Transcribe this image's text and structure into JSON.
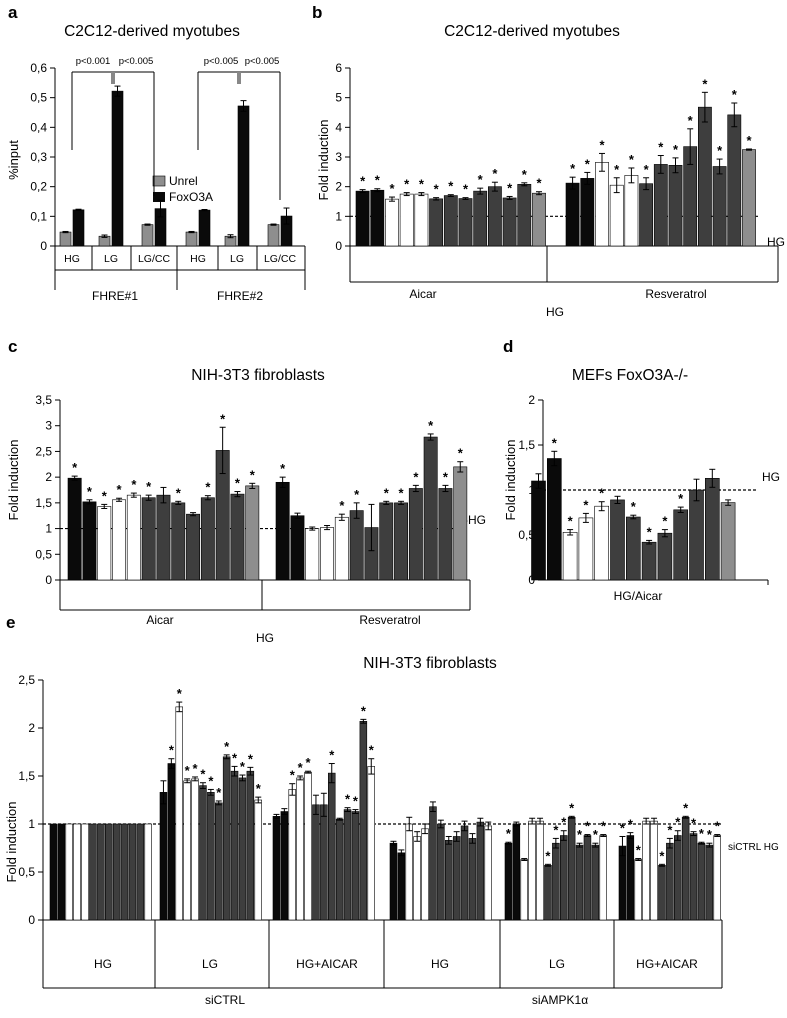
{
  "colors": {
    "black": "#0a0a0a",
    "white": "#ffffff",
    "dark": "#3e3e3e",
    "gray": "#8e8e8e"
  },
  "chart_data": [
    {
      "id": "a",
      "panel": "a",
      "type": "bar",
      "title": "C2C12-derived myotubes",
      "ylabel": "%input",
      "ylim": [
        0,
        0.6
      ],
      "yticks": [
        "0",
        "0,1",
        "0,2",
        "0,3",
        "0,4",
        "0,5",
        "0,6"
      ],
      "groups": [
        "FHRE#1",
        "FHRE#2"
      ],
      "categories": [
        "HG",
        "LG",
        "LG/CC",
        "HG",
        "LG",
        "LG/CC"
      ],
      "series": [
        {
          "name": "Unrel",
          "color": "#8e8e8e",
          "values": [
            0.047,
            0.033,
            0.072,
            0.047,
            0.033,
            0.072
          ],
          "errors": [
            0.002,
            0.004,
            0.002,
            0.002,
            0.005,
            0.002
          ]
        },
        {
          "name": "FoxO3A",
          "color": "#0a0a0a",
          "values": [
            0.122,
            0.522,
            0.126,
            0.121,
            0.472,
            0.101
          ],
          "errors": [
            0.002,
            0.017,
            0.028,
            0.002,
            0.018,
            0.027
          ]
        }
      ],
      "pvalues": [
        "p<0.001",
        "p<0.005",
        "p<0.005",
        "p<0.005"
      ]
    },
    {
      "id": "b",
      "panel": "b",
      "type": "bar",
      "title": "C2C12-derived myotubes",
      "ylabel": "Fold induction",
      "ylim": [
        0,
        6
      ],
      "yticks": [
        "0",
        "1",
        "2",
        "3",
        "4",
        "5",
        "6"
      ],
      "baseline_label": "HG",
      "center_label": "HG",
      "groups": [
        "Aicar",
        "Resveratrol"
      ],
      "bars": [
        {
          "v": 1.85,
          "e": 0.05,
          "c": "black",
          "s": true
        },
        {
          "v": 1.88,
          "e": 0.05,
          "c": "black",
          "s": true
        },
        {
          "v": 1.58,
          "e": 0.07,
          "c": "white",
          "s": true
        },
        {
          "v": 1.75,
          "e": 0.05,
          "c": "white",
          "s": true
        },
        {
          "v": 1.75,
          "e": 0.05,
          "c": "white",
          "s": true
        },
        {
          "v": 1.59,
          "e": 0.04,
          "c": "dark",
          "s": true
        },
        {
          "v": 1.7,
          "e": 0.03,
          "c": "dark",
          "s": true
        },
        {
          "v": 1.6,
          "e": 0.03,
          "c": "dark",
          "s": true
        },
        {
          "v": 1.85,
          "e": 0.1,
          "c": "dark",
          "s": true
        },
        {
          "v": 2.0,
          "e": 0.15,
          "c": "dark",
          "s": true
        },
        {
          "v": 1.62,
          "e": 0.05,
          "c": "dark",
          "s": true
        },
        {
          "v": 2.08,
          "e": 0.05,
          "c": "dark",
          "s": true
        },
        {
          "v": 1.78,
          "e": 0.05,
          "c": "gray",
          "s": true
        },
        {
          "v": 2.12,
          "e": 0.2,
          "c": "black",
          "s": true
        },
        {
          "v": 2.28,
          "e": 0.2,
          "c": "black",
          "s": true
        },
        {
          "v": 2.82,
          "e": 0.3,
          "c": "white",
          "s": true
        },
        {
          "v": 2.05,
          "e": 0.25,
          "c": "white",
          "s": true
        },
        {
          "v": 2.38,
          "e": 0.25,
          "c": "white",
          "s": true
        },
        {
          "v": 2.1,
          "e": 0.2,
          "c": "dark",
          "s": true
        },
        {
          "v": 2.75,
          "e": 0.3,
          "c": "dark",
          "s": true
        },
        {
          "v": 2.72,
          "e": 0.25,
          "c": "dark",
          "s": true
        },
        {
          "v": 3.35,
          "e": 0.6,
          "c": "dark",
          "s": true
        },
        {
          "v": 4.68,
          "e": 0.5,
          "c": "dark",
          "s": true
        },
        {
          "v": 2.68,
          "e": 0.25,
          "c": "dark",
          "s": true
        },
        {
          "v": 4.42,
          "e": 0.4,
          "c": "dark",
          "s": true
        },
        {
          "v": 3.25,
          "e": 0.02,
          "c": "gray",
          "s": true
        }
      ]
    },
    {
      "id": "c",
      "panel": "c",
      "type": "bar",
      "title": "NIH-3T3 fibroblasts",
      "ylabel": "Fold induction",
      "ylim": [
        0,
        3.5
      ],
      "yticks": [
        "0",
        "0,5",
        "1",
        "1,5",
        "2",
        "2,5",
        "3",
        "3,5"
      ],
      "baseline_label": "-HG",
      "center_label": "HG",
      "groups": [
        "Aicar",
        "Resveratrol"
      ],
      "bars": [
        {
          "v": 1.98,
          "e": 0.04,
          "c": "black",
          "s": true
        },
        {
          "v": 1.52,
          "e": 0.04,
          "c": "black",
          "s": true
        },
        {
          "v": 1.43,
          "e": 0.04,
          "c": "white",
          "s": true
        },
        {
          "v": 1.56,
          "e": 0.03,
          "c": "white",
          "s": true
        },
        {
          "v": 1.65,
          "e": 0.04,
          "c": "white",
          "s": true
        },
        {
          "v": 1.6,
          "e": 0.05,
          "c": "dark",
          "s": true
        },
        {
          "v": 1.65,
          "e": 0.15,
          "c": "dark",
          "s": false
        },
        {
          "v": 1.5,
          "e": 0.03,
          "c": "dark",
          "s": true
        },
        {
          "v": 1.28,
          "e": 0.03,
          "c": "dark",
          "s": false
        },
        {
          "v": 1.6,
          "e": 0.04,
          "c": "dark",
          "s": true
        },
        {
          "v": 2.52,
          "e": 0.45,
          "c": "dark",
          "s": true
        },
        {
          "v": 1.67,
          "e": 0.05,
          "c": "dark",
          "s": true
        },
        {
          "v": 1.83,
          "e": 0.05,
          "c": "gray",
          "s": true
        },
        {
          "v": 1.9,
          "e": 0.1,
          "c": "black",
          "s": true
        },
        {
          "v": 1.25,
          "e": 0.05,
          "c": "black",
          "s": false
        },
        {
          "v": 1.0,
          "e": 0.03,
          "c": "white",
          "s": false
        },
        {
          "v": 1.02,
          "e": 0.04,
          "c": "white",
          "s": false
        },
        {
          "v": 1.22,
          "e": 0.06,
          "c": "white",
          "s": true
        },
        {
          "v": 1.35,
          "e": 0.15,
          "c": "dark",
          "s": true
        },
        {
          "v": 1.02,
          "e": 0.45,
          "c": "dark",
          "s": false
        },
        {
          "v": 1.5,
          "e": 0.03,
          "c": "dark",
          "s": true
        },
        {
          "v": 1.5,
          "e": 0.03,
          "c": "dark",
          "s": true
        },
        {
          "v": 1.78,
          "e": 0.06,
          "c": "dark",
          "s": true
        },
        {
          "v": 2.78,
          "e": 0.06,
          "c": "dark",
          "s": true
        },
        {
          "v": 1.78,
          "e": 0.06,
          "c": "dark",
          "s": true
        },
        {
          "v": 2.2,
          "e": 0.1,
          "c": "gray",
          "s": true
        }
      ]
    },
    {
      "id": "d",
      "panel": "d",
      "type": "bar",
      "title": "MEFs FoxO3A-/-",
      "ylabel": "Fold induction",
      "ylim": [
        0,
        2
      ],
      "yticks": [
        "0",
        "0,5",
        "1",
        "1,5",
        "2"
      ],
      "baseline_label": "HG",
      "center_label": "HG/Aicar",
      "bars": [
        {
          "v": 1.1,
          "e": 0.08,
          "c": "black",
          "s": false
        },
        {
          "v": 1.35,
          "e": 0.08,
          "c": "black",
          "s": true
        },
        {
          "v": 0.53,
          "e": 0.03,
          "c": "white",
          "s": true
        },
        {
          "v": 0.69,
          "e": 0.05,
          "c": "white",
          "s": true
        },
        {
          "v": 0.82,
          "e": 0.05,
          "c": "white",
          "s": true
        },
        {
          "v": 0.89,
          "e": 0.04,
          "c": "dark",
          "s": false
        },
        {
          "v": 0.7,
          "e": 0.02,
          "c": "dark",
          "s": true
        },
        {
          "v": 0.42,
          "e": 0.02,
          "c": "dark",
          "s": true
        },
        {
          "v": 0.52,
          "e": 0.04,
          "c": "dark",
          "s": true
        },
        {
          "v": 0.78,
          "e": 0.03,
          "c": "dark",
          "s": true
        },
        {
          "v": 1.0,
          "e": 0.12,
          "c": "dark",
          "s": false
        },
        {
          "v": 1.13,
          "e": 0.1,
          "c": "dark",
          "s": false
        },
        {
          "v": 0.86,
          "e": 0.03,
          "c": "gray",
          "s": false
        }
      ]
    },
    {
      "id": "e",
      "panel": "e",
      "type": "bar",
      "title": "NIH-3T3 fibroblasts",
      "ylabel": "Fold induction",
      "ylim": [
        0,
        2.5
      ],
      "yticks": [
        "0",
        "0,5",
        "1",
        "1,5",
        "2",
        "2,5"
      ],
      "baseline_label": "siCTRL HG",
      "subgroups": [
        "HG",
        "LG",
        "HG+AICAR",
        "HG",
        "LG",
        "HG+AICAR"
      ],
      "groups": [
        "siCTRL",
        "siAMPK1α"
      ],
      "bars": [
        {
          "v": 1.0,
          "e": 0.0,
          "c": "black",
          "s": false
        },
        {
          "v": 1.0,
          "e": 0.0,
          "c": "black",
          "s": false
        },
        {
          "v": 1.0,
          "e": 0.0,
          "c": "white",
          "s": false
        },
        {
          "v": 1.0,
          "e": 0.0,
          "c": "white",
          "s": false
        },
        {
          "v": 1.0,
          "e": 0.0,
          "c": "white",
          "s": false
        },
        {
          "v": 1.0,
          "e": 0.0,
          "c": "dark",
          "s": false
        },
        {
          "v": 1.0,
          "e": 0.0,
          "c": "dark",
          "s": false
        },
        {
          "v": 1.0,
          "e": 0.0,
          "c": "dark",
          "s": false
        },
        {
          "v": 1.0,
          "e": 0.0,
          "c": "dark",
          "s": false
        },
        {
          "v": 1.0,
          "e": 0.0,
          "c": "dark",
          "s": false
        },
        {
          "v": 1.0,
          "e": 0.0,
          "c": "dark",
          "s": false
        },
        {
          "v": 1.0,
          "e": 0.0,
          "c": "dark",
          "s": false
        },
        {
          "v": 1.0,
          "e": 0.0,
          "c": "white",
          "s": false
        },
        {
          "v": 1.33,
          "e": 0.12,
          "c": "black",
          "s": false
        },
        {
          "v": 1.63,
          "e": 0.05,
          "c": "black",
          "s": true
        },
        {
          "v": 2.22,
          "e": 0.05,
          "c": "white",
          "s": true
        },
        {
          "v": 1.45,
          "e": 0.02,
          "c": "white",
          "s": true
        },
        {
          "v": 1.47,
          "e": 0.02,
          "c": "white",
          "s": true
        },
        {
          "v": 1.4,
          "e": 0.03,
          "c": "dark",
          "s": true
        },
        {
          "v": 1.33,
          "e": 0.03,
          "c": "dark",
          "s": true
        },
        {
          "v": 1.22,
          "e": 0.02,
          "c": "dark",
          "s": true
        },
        {
          "v": 1.7,
          "e": 0.02,
          "c": "dark",
          "s": true
        },
        {
          "v": 1.55,
          "e": 0.05,
          "c": "dark",
          "s": true
        },
        {
          "v": 1.48,
          "e": 0.03,
          "c": "dark",
          "s": true
        },
        {
          "v": 1.55,
          "e": 0.04,
          "c": "dark",
          "s": true
        },
        {
          "v": 1.25,
          "e": 0.03,
          "c": "white",
          "s": true
        },
        {
          "v": 1.08,
          "e": 0.02,
          "c": "black",
          "s": false
        },
        {
          "v": 1.13,
          "e": 0.03,
          "c": "black",
          "s": false
        },
        {
          "v": 1.36,
          "e": 0.06,
          "c": "white",
          "s": true
        },
        {
          "v": 1.48,
          "e": 0.02,
          "c": "white",
          "s": true
        },
        {
          "v": 1.54,
          "e": 0.01,
          "c": "white",
          "s": true
        },
        {
          "v": 1.2,
          "e": 0.1,
          "c": "dark",
          "s": false
        },
        {
          "v": 1.2,
          "e": 0.12,
          "c": "dark",
          "s": false
        },
        {
          "v": 1.53,
          "e": 0.1,
          "c": "dark",
          "s": true
        },
        {
          "v": 1.05,
          "e": 0.01,
          "c": "dark",
          "s": false
        },
        {
          "v": 1.15,
          "e": 0.02,
          "c": "dark",
          "s": true
        },
        {
          "v": 1.13,
          "e": 0.02,
          "c": "dark",
          "s": true
        },
        {
          "v": 2.07,
          "e": 0.02,
          "c": "dark",
          "s": true
        },
        {
          "v": 1.6,
          "e": 0.08,
          "c": "white",
          "s": true
        },
        {
          "v": 0.8,
          "e": 0.02,
          "c": "black",
          "s": false
        },
        {
          "v": 0.7,
          "e": 0.03,
          "c": "black",
          "s": false
        },
        {
          "v": 1.0,
          "e": 0.07,
          "c": "white",
          "s": false
        },
        {
          "v": 0.87,
          "e": 0.05,
          "c": "white",
          "s": false
        },
        {
          "v": 0.95,
          "e": 0.05,
          "c": "white",
          "s": false
        },
        {
          "v": 1.18,
          "e": 0.05,
          "c": "dark",
          "s": false
        },
        {
          "v": 1.0,
          "e": 0.04,
          "c": "dark",
          "s": false
        },
        {
          "v": 0.83,
          "e": 0.04,
          "c": "dark",
          "s": false
        },
        {
          "v": 0.87,
          "e": 0.05,
          "c": "dark",
          "s": false
        },
        {
          "v": 0.98,
          "e": 0.05,
          "c": "dark",
          "s": false
        },
        {
          "v": 0.85,
          "e": 0.05,
          "c": "dark",
          "s": false
        },
        {
          "v": 1.02,
          "e": 0.04,
          "c": "dark",
          "s": false
        },
        {
          "v": 0.98,
          "e": 0.04,
          "c": "white",
          "s": false
        },
        {
          "v": 0.8,
          "e": 0.01,
          "c": "black",
          "s": true
        },
        {
          "v": 1.0,
          "e": 0.02,
          "c": "black",
          "s": false
        },
        {
          "v": 0.63,
          "e": 0.01,
          "c": "white",
          "s": false
        },
        {
          "v": 1.03,
          "e": 0.03,
          "c": "white",
          "s": false
        },
        {
          "v": 1.03,
          "e": 0.03,
          "c": "white",
          "s": false
        },
        {
          "v": 0.57,
          "e": 0.01,
          "c": "dark",
          "s": true
        },
        {
          "v": 0.8,
          "e": 0.05,
          "c": "dark",
          "s": true
        },
        {
          "v": 0.88,
          "e": 0.05,
          "c": "dark",
          "s": true
        },
        {
          "v": 1.07,
          "e": 0.01,
          "c": "dark",
          "s": true
        },
        {
          "v": 0.78,
          "e": 0.02,
          "c": "dark",
          "s": true
        },
        {
          "v": 0.88,
          "e": 0.01,
          "c": "dark",
          "s": true
        },
        {
          "v": 0.78,
          "e": 0.02,
          "c": "dark",
          "s": true
        },
        {
          "v": 0.88,
          "e": 0.01,
          "c": "white",
          "s": true
        },
        {
          "v": 0.77,
          "e": 0.1,
          "c": "black",
          "s": true
        },
        {
          "v": 0.88,
          "e": 0.03,
          "c": "black",
          "s": true
        },
        {
          "v": 0.63,
          "e": 0.01,
          "c": "white",
          "s": true
        },
        {
          "v": 1.03,
          "e": 0.03,
          "c": "white",
          "s": false
        },
        {
          "v": 1.03,
          "e": 0.03,
          "c": "white",
          "s": false
        },
        {
          "v": 0.57,
          "e": 0.01,
          "c": "dark",
          "s": true
        },
        {
          "v": 0.8,
          "e": 0.05,
          "c": "dark",
          "s": true
        },
        {
          "v": 0.88,
          "e": 0.05,
          "c": "dark",
          "s": true
        },
        {
          "v": 1.07,
          "e": 0.01,
          "c": "dark",
          "s": true
        },
        {
          "v": 0.9,
          "e": 0.02,
          "c": "dark",
          "s": true
        },
        {
          "v": 0.8,
          "e": 0.01,
          "c": "dark",
          "s": true
        },
        {
          "v": 0.78,
          "e": 0.02,
          "c": "dark",
          "s": true
        },
        {
          "v": 0.88,
          "e": 0.01,
          "c": "white",
          "s": true
        }
      ]
    }
  ]
}
